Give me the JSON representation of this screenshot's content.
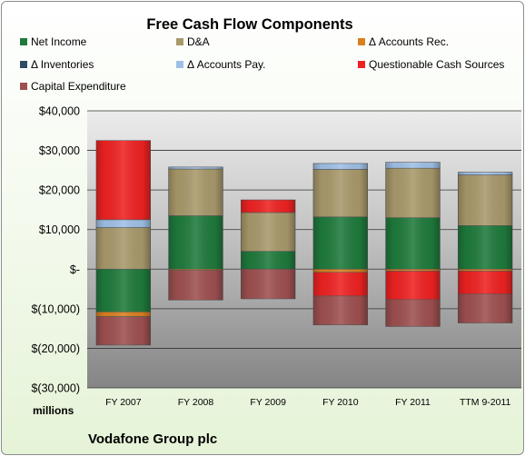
{
  "chart_data": {
    "type": "bar",
    "stacked": true,
    "title": "Free Cash Flow Components",
    "categories": [
      "FY 2007",
      "FY 2008",
      "FY 2009",
      "FY 2010",
      "FY 2011",
      "TTM 9-2011"
    ],
    "ylim": [
      -30000,
      40000
    ],
    "yticks": [
      40000,
      30000,
      20000,
      10000,
      0,
      -10000,
      -20000,
      -30000
    ],
    "ytick_labels": [
      "$40,000",
      "$30,000",
      "$20,000",
      "$10,000",
      "$-",
      "$(10,000)",
      "$(20,000)",
      "$(30,000)"
    ],
    "unit_label": "millions",
    "grid": true,
    "legend_position": "top",
    "series": [
      {
        "name": "Net Income",
        "color": "#1f7a3c",
        "values": [
          -10800,
          13500,
          4500,
          13200,
          13000,
          11000
        ]
      },
      {
        "name": "D&A",
        "color": "#a8996b",
        "values": [
          10500,
          11800,
          9800,
          12000,
          12500,
          12800
        ]
      },
      {
        "name": "Δ Accounts Rec.",
        "color": "#d9801f",
        "values": [
          -1200,
          -300,
          0,
          -800,
          -500,
          -500
        ]
      },
      {
        "name": "Δ Inventories",
        "color": "#2e4a66",
        "values": [
          0,
          0,
          0,
          0,
          0,
          0
        ]
      },
      {
        "name": "Δ Accounts Pay.",
        "color": "#9fc0e6",
        "values": [
          2000,
          500,
          0,
          1500,
          1500,
          700
        ]
      },
      {
        "name": "Questionable Cash Sources",
        "color": "#ee2222",
        "values": [
          20000,
          0,
          3200,
          -6000,
          -7200,
          -5800
        ]
      },
      {
        "name": "Capital Expenditure",
        "color": "#9e5050",
        "values": [
          -7200,
          -7500,
          -7500,
          -7300,
          -6800,
          -7300
        ]
      }
    ]
  },
  "footer": {
    "company": "Vodafone Group plc"
  }
}
